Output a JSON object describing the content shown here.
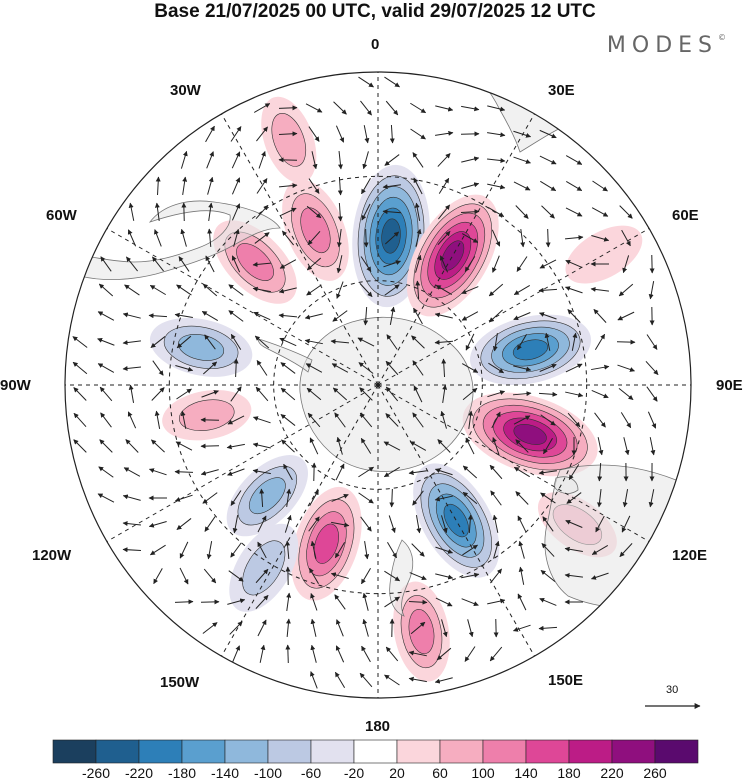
{
  "title": "Base 21/07/2025 00 UTC, valid 29/07/2025 12 UTC",
  "brand": {
    "name": "MODES",
    "mark": "©"
  },
  "longitude_labels": {
    "lon_0": "0",
    "lon_30e": "30E",
    "lon_60e": "60E",
    "lon_90e": "90E",
    "lon_120e": "120E",
    "lon_150e": "150E",
    "lon_180": "180",
    "lon_150w": "150W",
    "lon_120w": "120W",
    "lon_90w": "90W",
    "lon_60w": "60W",
    "lon_30w": "30W"
  },
  "vector_reference": {
    "value": "30"
  },
  "colorbar": {
    "colors": [
      "#1b3f5e",
      "#1f5f8f",
      "#2d7fb8",
      "#5a9fcf",
      "#8fb8dc",
      "#bcc9e3",
      "#e2e1ef",
      "#ffffff",
      "#fbd6dc",
      "#f6adc0",
      "#ee7fab",
      "#de4797",
      "#bc1c86",
      "#8f0f7e",
      "#5a0a6e"
    ],
    "tick_labels": [
      "-260",
      "-220",
      "-180",
      "-140",
      "-100",
      "-60",
      "-20",
      "20",
      "60",
      "100",
      "140",
      "180",
      "220",
      "260"
    ]
  },
  "anomaly_centers": [
    {
      "lon": 5,
      "lat": -47,
      "value": -250
    },
    {
      "lon": 30,
      "lat": -47,
      "value": 220
    },
    {
      "lon": 77,
      "lat": -45,
      "value": -180
    },
    {
      "lon": 108,
      "lat": -44,
      "value": 240
    },
    {
      "lon": 150,
      "lat": -45,
      "value": -190
    },
    {
      "lon": -162,
      "lat": -42,
      "value": 160
    },
    {
      "lon": -135,
      "lat": -45,
      "value": -100
    },
    {
      "lon": -148,
      "lat": -28,
      "value": -90
    },
    {
      "lon": -100,
      "lat": -40,
      "value": 60
    },
    {
      "lon": -78,
      "lat": -38,
      "value": -110
    },
    {
      "lon": -45,
      "lat": -40,
      "value": 110
    },
    {
      "lon": -22,
      "lat": -42,
      "value": 120
    },
    {
      "lon": -20,
      "lat": -15,
      "value": 60
    },
    {
      "lon": 125,
      "lat": -20,
      "value": 60
    },
    {
      "lon": 170,
      "lat": -18,
      "value": 100
    },
    {
      "lon": 60,
      "lat": -15,
      "value": 40
    }
  ]
}
